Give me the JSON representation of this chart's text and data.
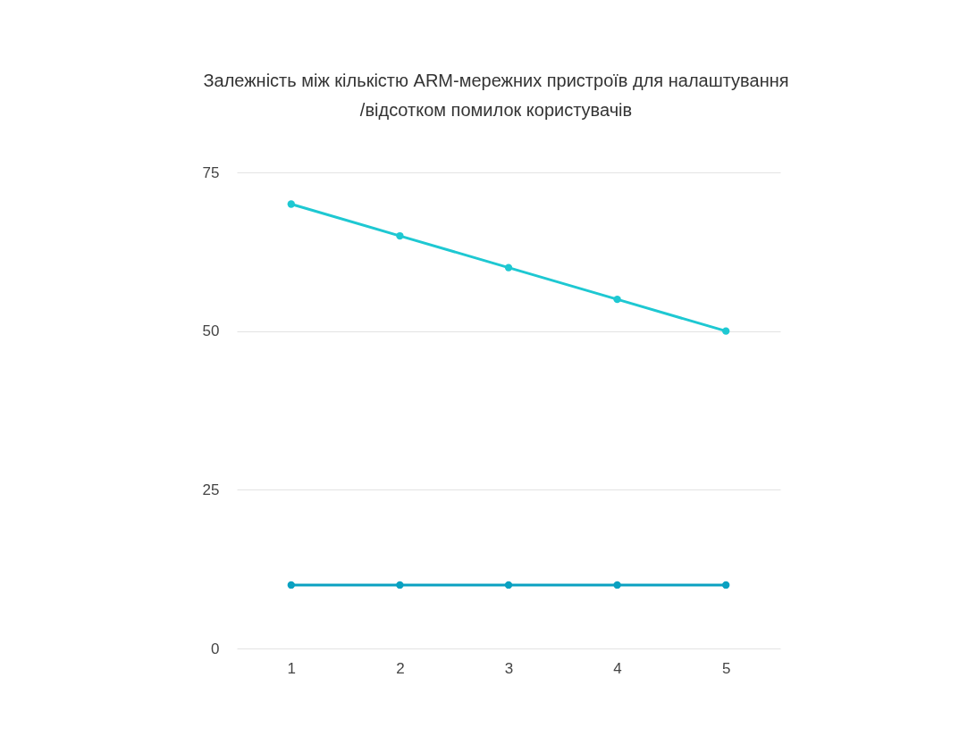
{
  "chart_data": {
    "type": "line",
    "title": [
      "Залежність між кількістю ARM-мережних пристроїв для налаштування",
      "/відсотком помилок користувачів"
    ],
    "categories": [
      "1",
      "2",
      "3",
      "4",
      "5"
    ],
    "series": [
      {
        "color": "#1ec8d2",
        "values": [
          70,
          65,
          60,
          55,
          50
        ]
      },
      {
        "color": "#0aa1c1",
        "values": [
          10,
          10,
          10,
          10,
          10
        ]
      }
    ],
    "ylim": [
      0,
      75
    ],
    "yticks": [
      0,
      25,
      50,
      75
    ],
    "grid": "y",
    "legend": false,
    "marker": "circle",
    "line_style": "solid"
  }
}
